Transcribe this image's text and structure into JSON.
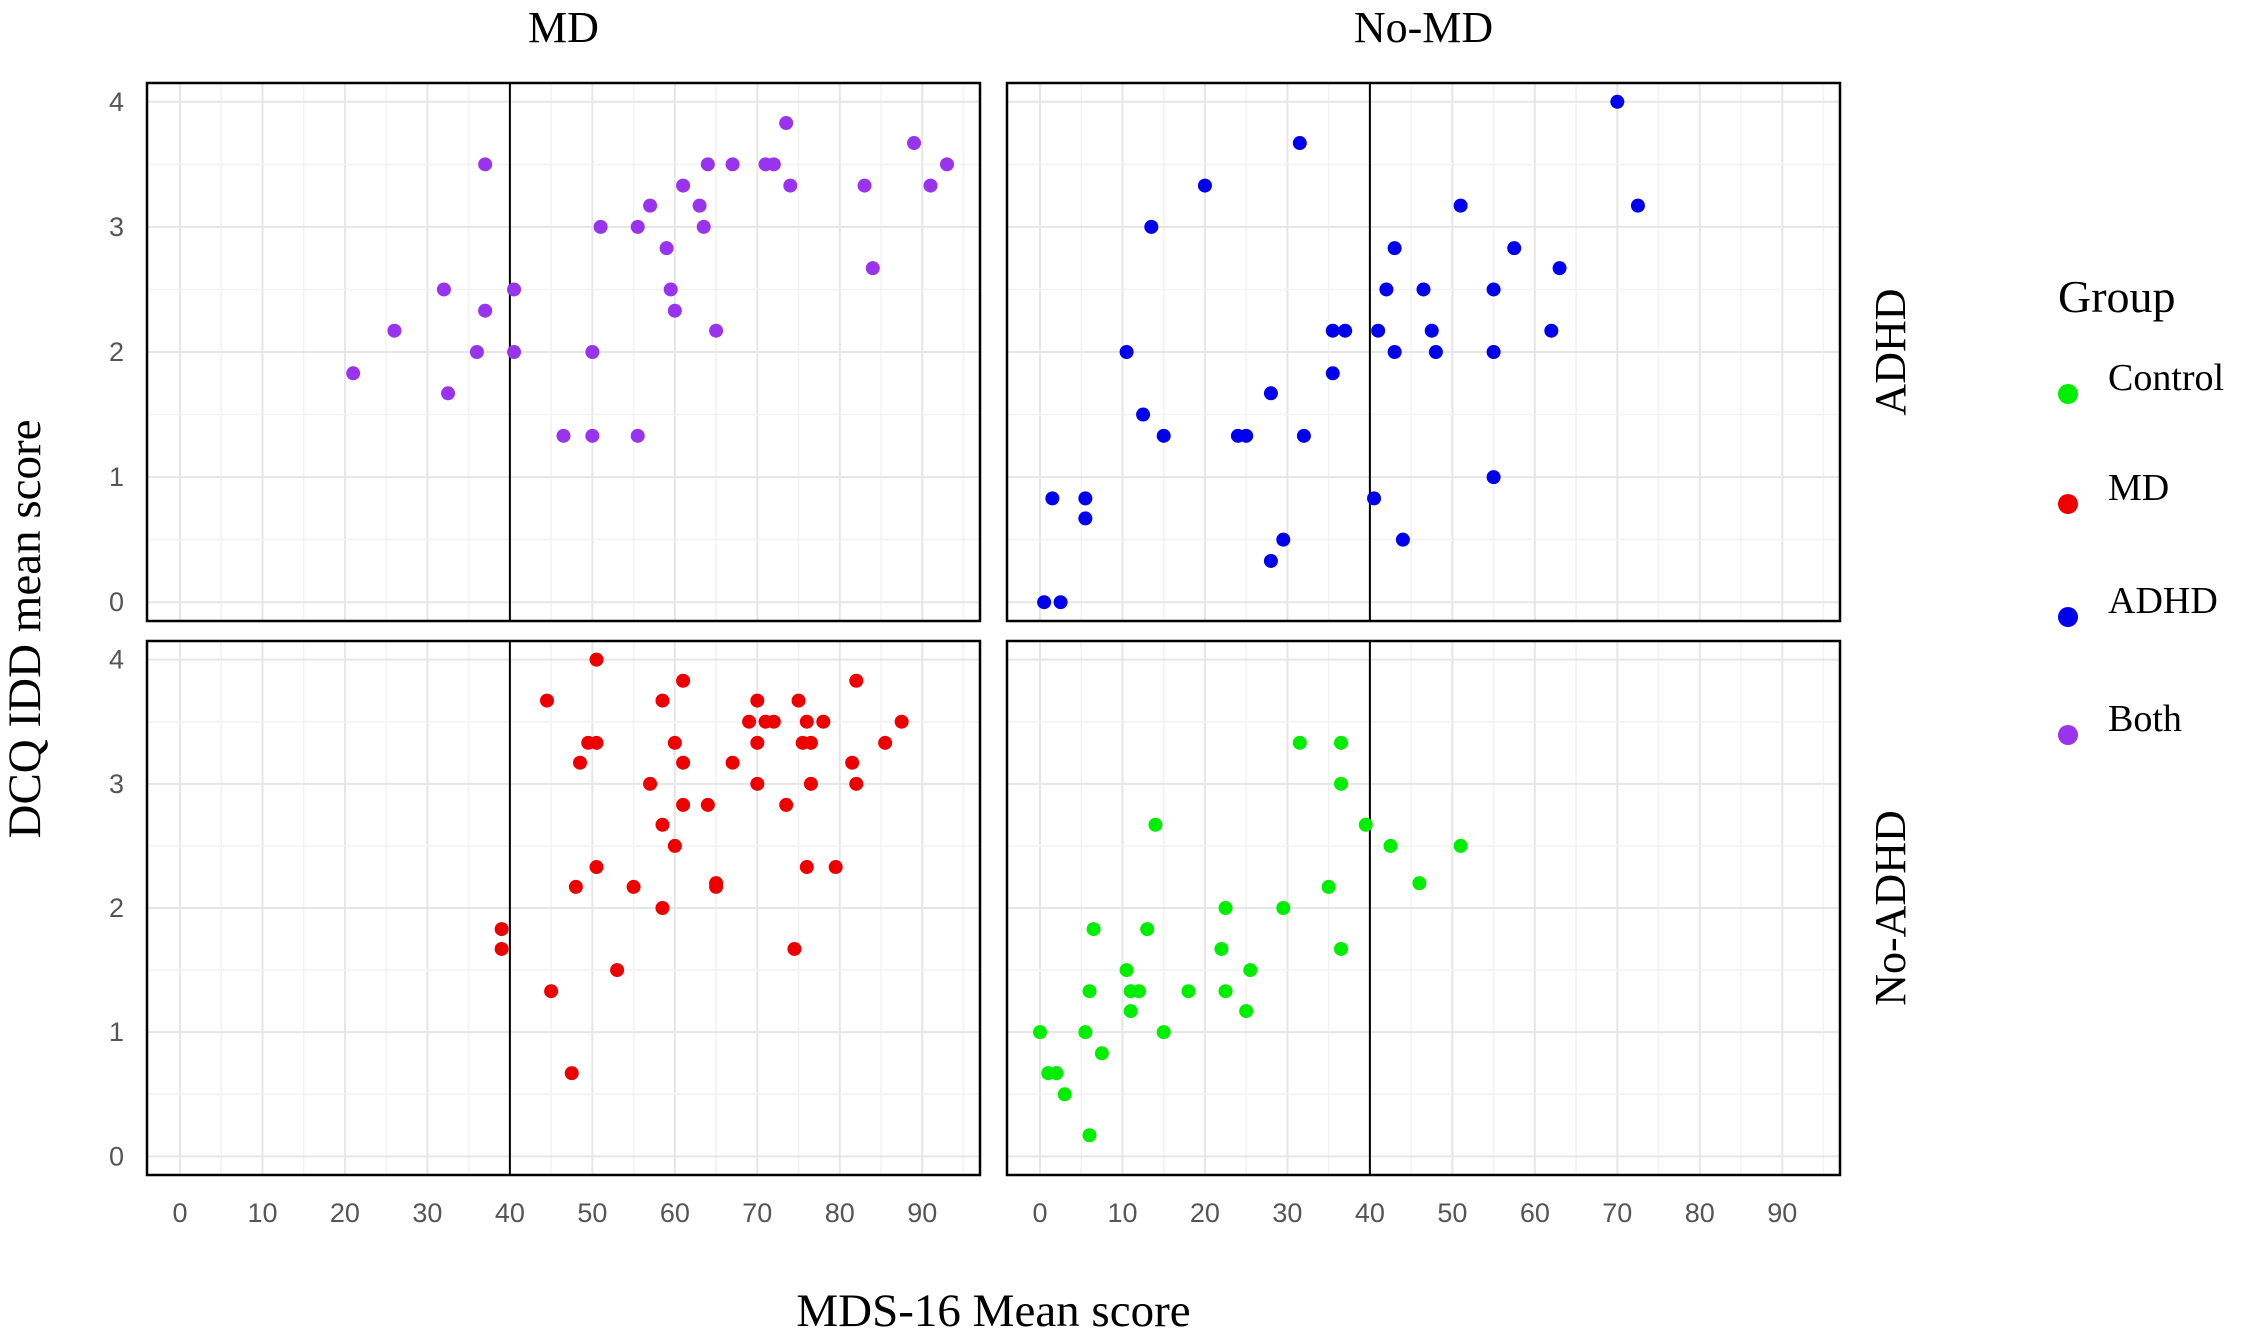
{
  "chart_data": {
    "type": "scatter",
    "facet_columns": [
      "MD",
      "No-MD"
    ],
    "facet_rows": [
      "ADHD",
      "No-ADHD"
    ],
    "xlabel": "MDS-16 Mean score",
    "ylabel": "DCQ IDD mean score",
    "xticks": [
      0,
      10,
      20,
      30,
      40,
      50,
      60,
      70,
      80,
      90
    ],
    "yticks": [
      0,
      1,
      2,
      3,
      4
    ],
    "xlim": [
      -4,
      97
    ],
    "ylim": [
      -0.15,
      4.15
    ],
    "reference_line_x": 40,
    "grid": true,
    "legend": {
      "title": "Group",
      "placement": "right",
      "entries": [
        {
          "label": "Control",
          "color": "#00ee00"
        },
        {
          "label": "MD",
          "color": "#ee0000"
        },
        {
          "label": "ADHD",
          "color": "#0000ee"
        },
        {
          "label": "Both",
          "color": "#9933ee"
        }
      ]
    },
    "panels": [
      {
        "col": "MD",
        "row": "ADHD",
        "group": "Both",
        "color": "#9933ee",
        "points": [
          [
            21,
            1.83
          ],
          [
            26,
            2.17
          ],
          [
            32,
            2.5
          ],
          [
            32.5,
            1.67
          ],
          [
            36,
            2.0
          ],
          [
            37,
            2.33
          ],
          [
            37,
            3.5
          ],
          [
            40.5,
            2.5
          ],
          [
            40.5,
            2.0
          ],
          [
            46.5,
            1.33
          ],
          [
            50,
            2.0
          ],
          [
            50,
            1.33
          ],
          [
            51,
            3.0
          ],
          [
            55.5,
            3.0
          ],
          [
            55.5,
            1.33
          ],
          [
            57,
            3.17
          ],
          [
            59,
            2.83
          ],
          [
            59.5,
            2.5
          ],
          [
            60,
            2.33
          ],
          [
            61,
            3.33
          ],
          [
            63,
            3.17
          ],
          [
            63.5,
            3.0
          ],
          [
            64,
            3.5
          ],
          [
            65,
            2.17
          ],
          [
            67,
            3.5
          ],
          [
            71,
            3.5
          ],
          [
            72,
            3.5
          ],
          [
            73.5,
            3.83
          ],
          [
            74,
            3.33
          ],
          [
            83,
            3.33
          ],
          [
            84,
            2.67
          ],
          [
            89,
            3.67
          ],
          [
            91,
            3.33
          ],
          [
            93,
            3.5
          ]
        ]
      },
      {
        "col": "No-MD",
        "row": "ADHD",
        "group": "ADHD",
        "color": "#0000ee",
        "points": [
          [
            0.5,
            0
          ],
          [
            2.5,
            0
          ],
          [
            1.5,
            0.83
          ],
          [
            5.5,
            0.83
          ],
          [
            5.5,
            0.67
          ],
          [
            10.5,
            2.0
          ],
          [
            12.5,
            1.5
          ],
          [
            13.5,
            3.0
          ],
          [
            15,
            1.33
          ],
          [
            20,
            3.33
          ],
          [
            24,
            1.33
          ],
          [
            25,
            1.33
          ],
          [
            28,
            1.67
          ],
          [
            28,
            0.33
          ],
          [
            29.5,
            0.5
          ],
          [
            31.5,
            3.67
          ],
          [
            32,
            1.33
          ],
          [
            35.5,
            1.83
          ],
          [
            35.5,
            2.17
          ],
          [
            37,
            2.17
          ],
          [
            40.5,
            0.83
          ],
          [
            41,
            2.17
          ],
          [
            42,
            2.5
          ],
          [
            43,
            2.83
          ],
          [
            43,
            2.0
          ],
          [
            44,
            0.5
          ],
          [
            46.5,
            2.5
          ],
          [
            47.5,
            2.17
          ],
          [
            48,
            2.0
          ],
          [
            51,
            3.17
          ],
          [
            55,
            2.5
          ],
          [
            55,
            2.0
          ],
          [
            55,
            1.0
          ],
          [
            57.5,
            2.83
          ],
          [
            62,
            2.17
          ],
          [
            63,
            2.67
          ],
          [
            70,
            4.0
          ],
          [
            72.5,
            3.17
          ]
        ]
      },
      {
        "col": "MD",
        "row": "No-ADHD",
        "group": "MD",
        "color": "#ee0000",
        "points": [
          [
            39,
            1.83
          ],
          [
            39,
            1.67
          ],
          [
            44.5,
            3.67
          ],
          [
            45,
            1.33
          ],
          [
            47.5,
            0.67
          ],
          [
            48,
            2.17
          ],
          [
            48.5,
            3.17
          ],
          [
            49.5,
            3.33
          ],
          [
            50.5,
            3.33
          ],
          [
            50.5,
            2.33
          ],
          [
            50.5,
            4.0
          ],
          [
            53,
            1.5
          ],
          [
            55,
            2.17
          ],
          [
            57,
            3.0
          ],
          [
            58.5,
            3.67
          ],
          [
            58.5,
            2.67
          ],
          [
            58.5,
            2.0
          ],
          [
            60,
            3.33
          ],
          [
            60,
            2.5
          ],
          [
            61,
            3.17
          ],
          [
            61,
            2.83
          ],
          [
            61,
            3.83
          ],
          [
            64,
            2.83
          ],
          [
            65,
            2.17
          ],
          [
            65,
            2.2
          ],
          [
            67,
            3.17
          ],
          [
            69,
            3.5
          ],
          [
            70,
            3.67
          ],
          [
            70,
            3.33
          ],
          [
            70,
            3.0
          ],
          [
            71,
            3.5
          ],
          [
            72,
            3.5
          ],
          [
            73.5,
            2.83
          ],
          [
            74.5,
            1.67
          ],
          [
            75,
            3.67
          ],
          [
            75.5,
            3.33
          ],
          [
            76,
            3.5
          ],
          [
            76,
            2.33
          ],
          [
            76.5,
            3.0
          ],
          [
            76.5,
            3.33
          ],
          [
            78,
            3.5
          ],
          [
            79.5,
            2.33
          ],
          [
            81.5,
            3.17
          ],
          [
            82,
            3.83
          ],
          [
            82,
            3.0
          ],
          [
            85.5,
            3.33
          ],
          [
            87.5,
            3.5
          ]
        ]
      },
      {
        "col": "No-MD",
        "row": "No-ADHD",
        "group": "Control",
        "color": "#00ee00",
        "points": [
          [
            0,
            1.0
          ],
          [
            1,
            0.67
          ],
          [
            2,
            0.67
          ],
          [
            3,
            0.5
          ],
          [
            5.5,
            1.0
          ],
          [
            6,
            1.33
          ],
          [
            6,
            0.17
          ],
          [
            6.5,
            1.83
          ],
          [
            7.5,
            0.83
          ],
          [
            10.5,
            1.5
          ],
          [
            11,
            1.17
          ],
          [
            11,
            1.33
          ],
          [
            12,
            1.33
          ],
          [
            13,
            1.83
          ],
          [
            14,
            2.67
          ],
          [
            15,
            1.0
          ],
          [
            18,
            1.33
          ],
          [
            22,
            1.67
          ],
          [
            22.5,
            2.0
          ],
          [
            22.5,
            1.33
          ],
          [
            25,
            1.17
          ],
          [
            25.5,
            1.5
          ],
          [
            29.5,
            2.0
          ],
          [
            31.5,
            3.33
          ],
          [
            35,
            2.17
          ],
          [
            36.5,
            3.33
          ],
          [
            36.5,
            3.0
          ],
          [
            36.5,
            1.67
          ],
          [
            39.5,
            2.67
          ],
          [
            42.5,
            2.5
          ],
          [
            46,
            2.2
          ],
          [
            51,
            2.5
          ]
        ]
      }
    ]
  }
}
